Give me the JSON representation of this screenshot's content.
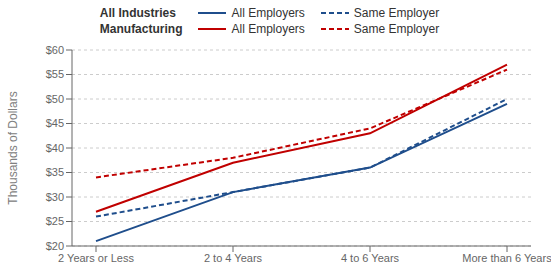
{
  "chart_data": {
    "type": "line",
    "categories": [
      "2 Years or Less",
      "2 to 4 Years",
      "4 to 6 Years",
      "More than 6 Years"
    ],
    "series": [
      {
        "name": "All Employers",
        "group": "All Industries",
        "color": "#1F4E8C",
        "line_style": "solid",
        "values": [
          21,
          31,
          36,
          49
        ]
      },
      {
        "name": "Same Employer",
        "group": "All Industries",
        "color": "#1F4E8C",
        "line_style": "dashed",
        "values": [
          26,
          31,
          36,
          50
        ]
      },
      {
        "name": "All Employers",
        "group": "Manufacturing",
        "color": "#C00000",
        "line_style": "solid",
        "values": [
          27,
          37,
          43,
          57
        ]
      },
      {
        "name": "Same Employer",
        "group": "Manufacturing",
        "color": "#C00000",
        "line_style": "dashed",
        "values": [
          34,
          38,
          44,
          56
        ]
      }
    ],
    "ylabel": "Thousands of Dollars",
    "ylim": [
      20,
      60
    ],
    "yticks": [
      {
        "value": 20,
        "label": "$20"
      },
      {
        "value": 25,
        "label": "$25"
      },
      {
        "value": 30,
        "label": "$30"
      },
      {
        "value": 35,
        "label": "$35"
      },
      {
        "value": 40,
        "label": "$40"
      },
      {
        "value": 45,
        "label": "$45"
      },
      {
        "value": 50,
        "label": "$50"
      },
      {
        "value": 55,
        "label": "$55"
      },
      {
        "value": 60,
        "label": "$60"
      }
    ],
    "grid": true,
    "legend": "top"
  }
}
